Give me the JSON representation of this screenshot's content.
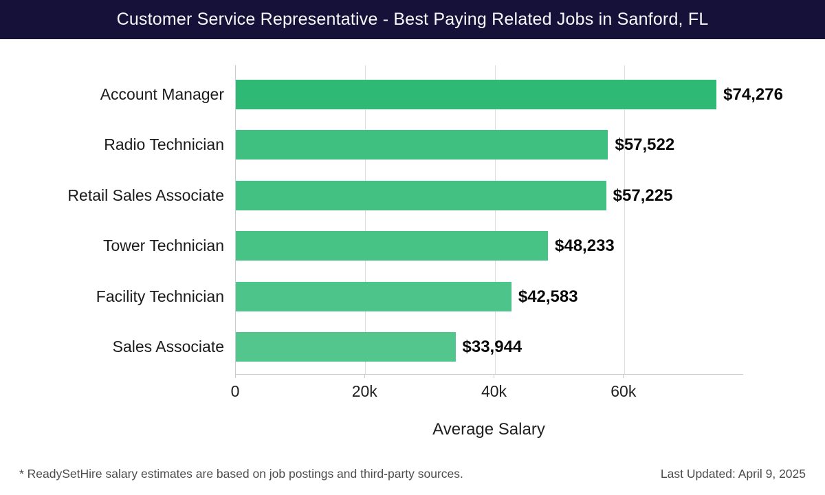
{
  "header": {
    "title": "Customer Service Representative - Best Paying Related Jobs in Sanford, FL"
  },
  "chart_data": {
    "type": "bar",
    "orientation": "horizontal",
    "title": "Customer Service Representative - Best Paying Related Jobs in Sanford, FL",
    "categories": [
      "Account Manager",
      "Radio Technician",
      "Retail Sales Associate",
      "Tower Technician",
      "Facility Technician",
      "Sales Associate"
    ],
    "values": [
      74276,
      57522,
      57225,
      48233,
      42583,
      33944
    ],
    "value_labels": [
      "$74,276",
      "$57,522",
      "$57,225",
      "$48,233",
      "$42,583",
      "$33,944"
    ],
    "bar_colors": [
      "#2eba74",
      "#3fc080",
      "#42c182",
      "#48c386",
      "#4dc489",
      "#52c68d"
    ],
    "xlabel": "Average Salary",
    "ylabel": "",
    "xlim": [
      0,
      78400
    ],
    "x_ticks": [
      {
        "value": 0,
        "label": "0"
      },
      {
        "value": 20000,
        "label": "20k"
      },
      {
        "value": 40000,
        "label": "40k"
      },
      {
        "value": 60000,
        "label": "60k"
      }
    ],
    "gridline_values": [
      20000,
      40000,
      60000
    ],
    "grid": true,
    "legend_position": "none"
  },
  "footer": {
    "disclaimer": "* ReadySetHire salary estimates are based on job postings and third-party sources.",
    "last_updated": "Last Updated: April 9, 2025"
  },
  "colors": {
    "header_bg": "#161139",
    "header_text": "#f7f8fc",
    "gridline": "#dedede",
    "axis_line": "#c9cccf",
    "category_label": "#1b1b1b",
    "value_label": "#0a0a0a",
    "tick_label": "#1f1f1f",
    "footer_text": "#4c4c4c",
    "background": "#ffffff"
  }
}
